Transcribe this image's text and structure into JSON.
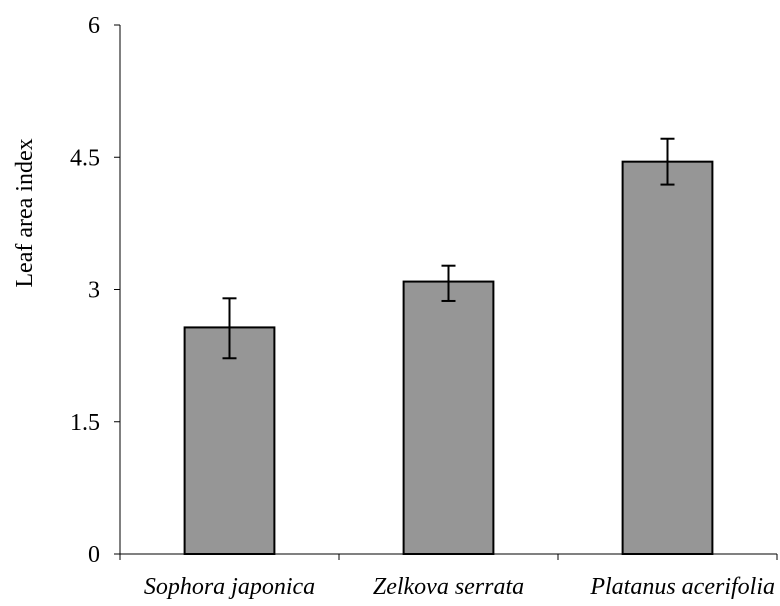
{
  "chart_data": {
    "type": "bar",
    "title": "",
    "xlabel": "",
    "ylabel": "Leaf area index",
    "categories": [
      "Sophora japonica",
      "Zelkova serrata",
      "Platanus acerifolia"
    ],
    "values": [
      2.57,
      3.09,
      4.45
    ],
    "error_low": [
      2.22,
      2.87,
      4.19
    ],
    "error_high": [
      2.9,
      3.27,
      4.71
    ],
    "ylim": [
      0,
      6
    ],
    "yticks": [
      "0",
      "1.5",
      "3",
      "4.5",
      "6"
    ],
    "ytick_values": [
      0,
      1.5,
      3,
      4.5,
      6
    ],
    "grid": false,
    "legend": "none",
    "bar_color": "#969696",
    "bar_edge_color": "#000000"
  }
}
